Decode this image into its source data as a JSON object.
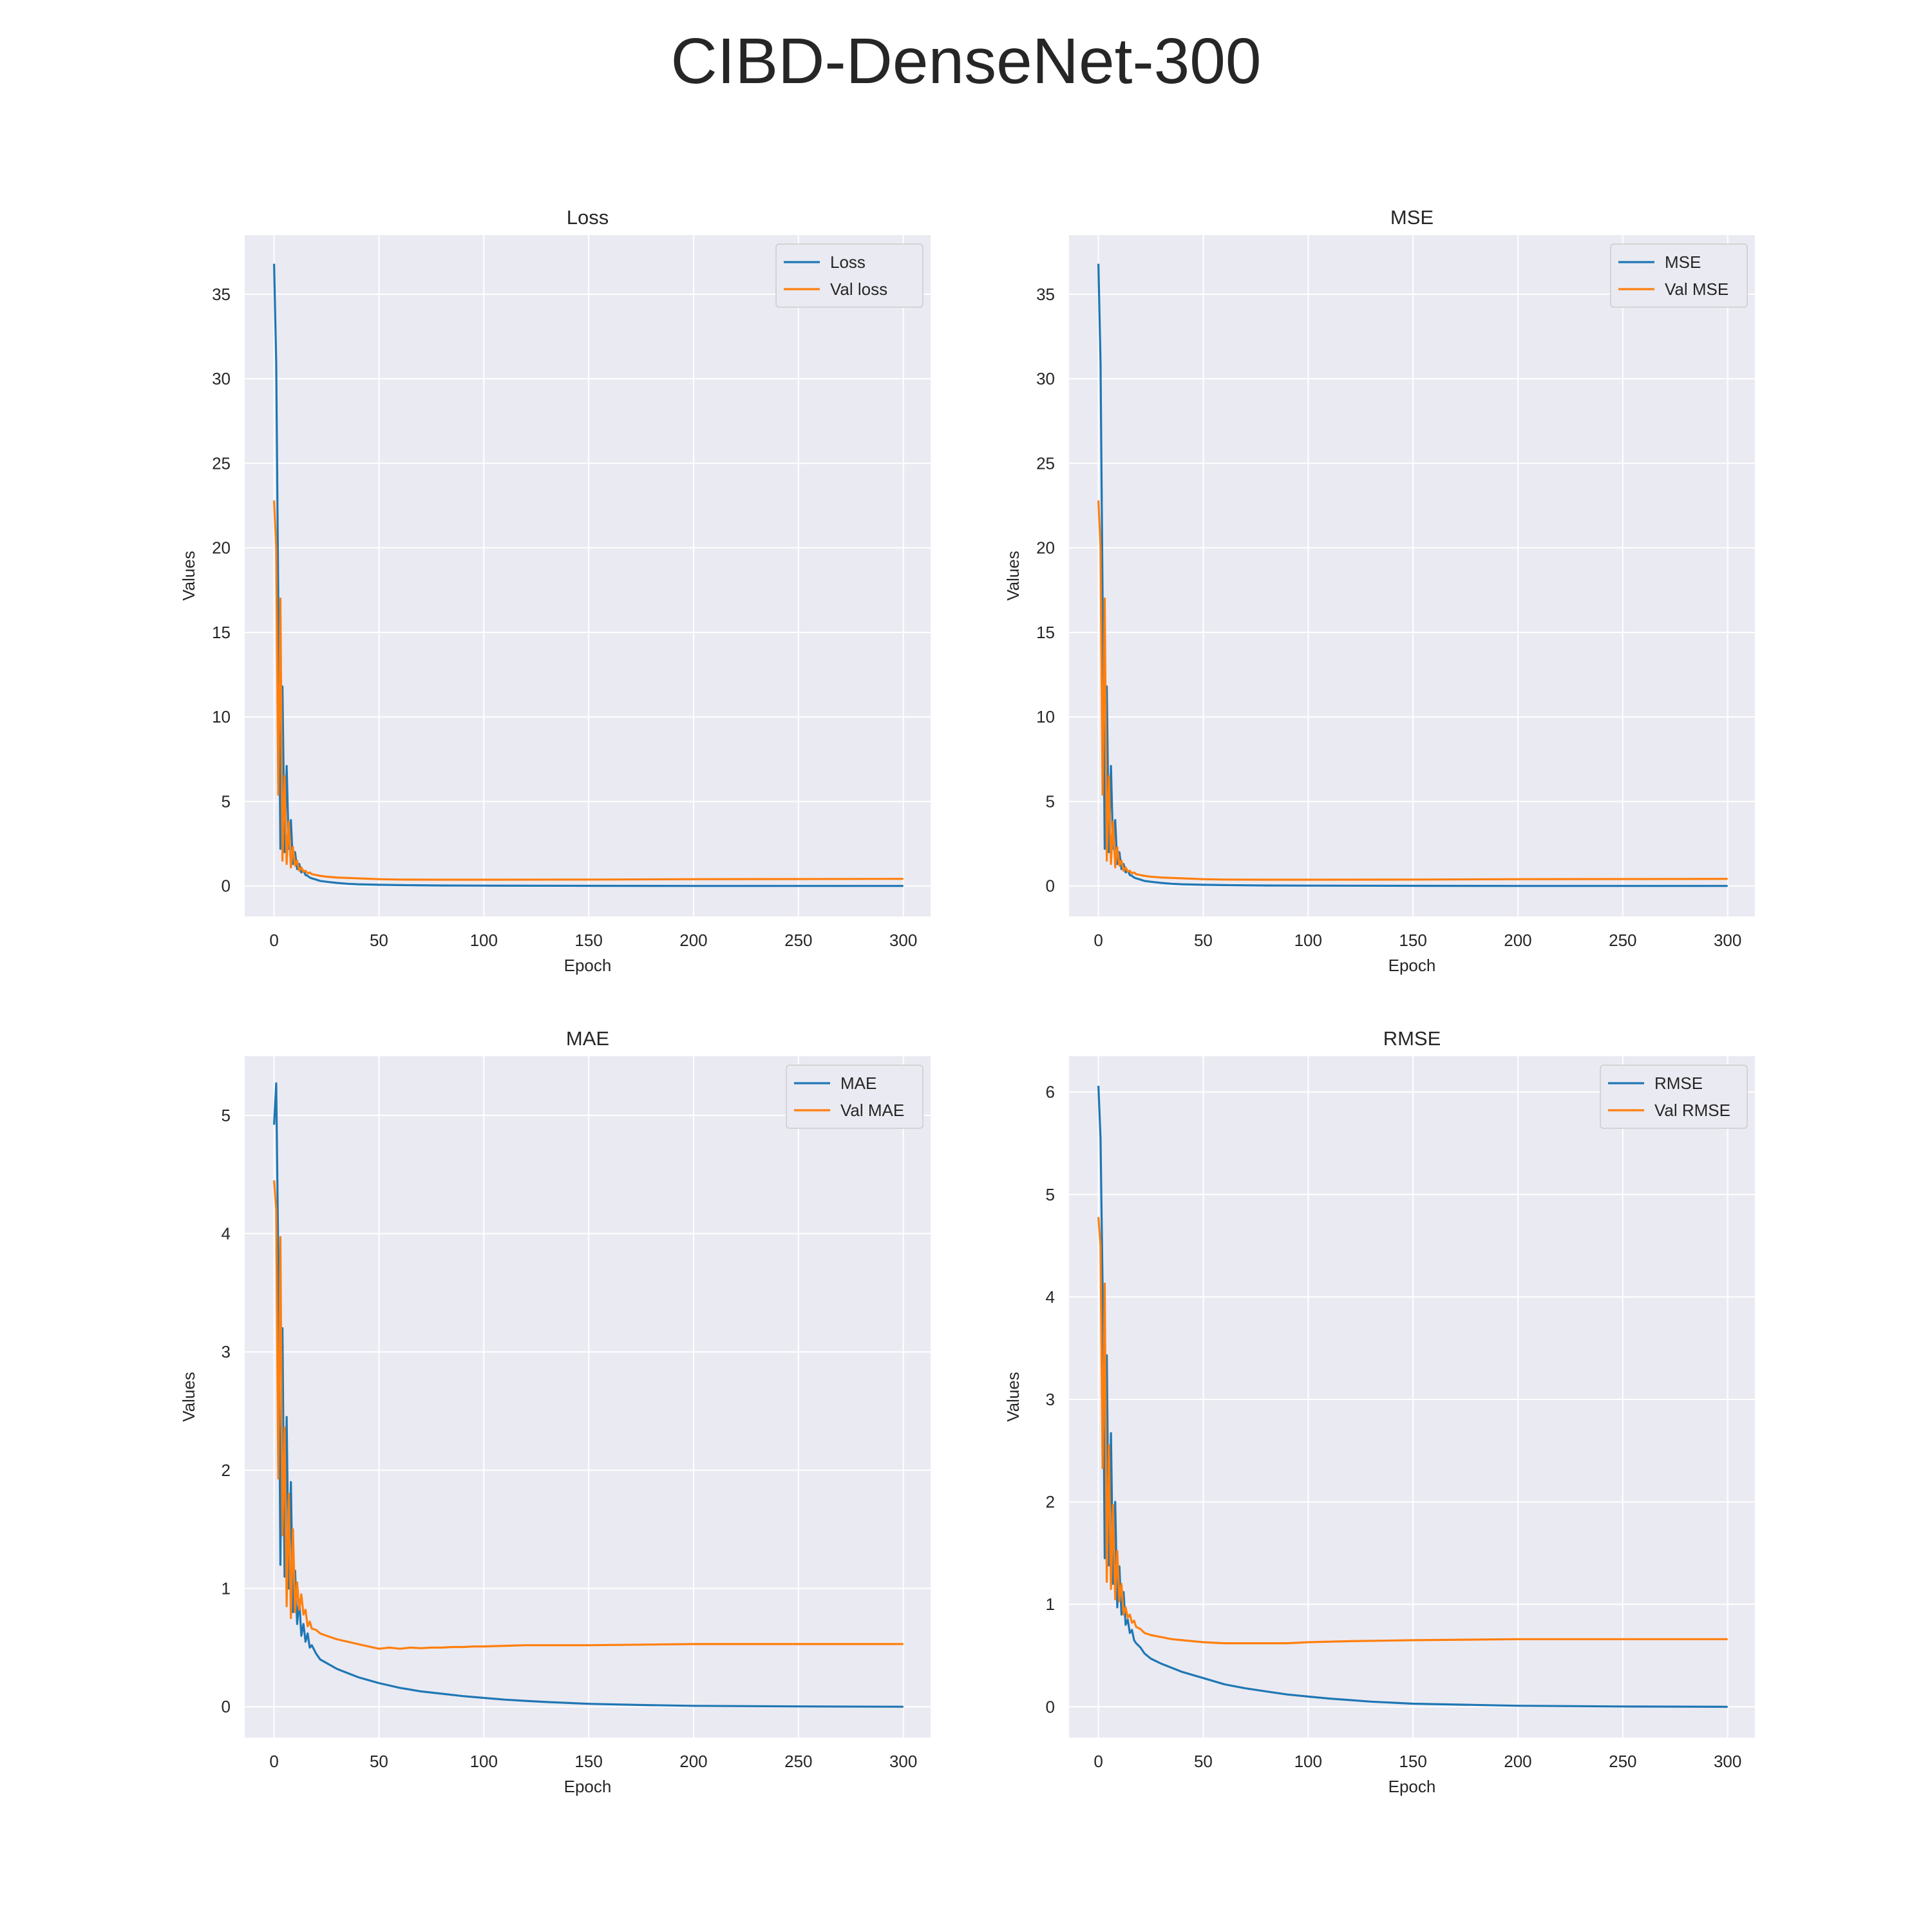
{
  "suptitle": "CIBD-DenseNet-300",
  "chart_data": [
    {
      "type": "line",
      "title": "Loss",
      "xlabel": "Epoch",
      "ylabel": "Values",
      "xlim": [
        -14,
        313
      ],
      "ylim": [
        -1.8,
        38.5
      ],
      "xticks": [
        0,
        50,
        100,
        150,
        200,
        250,
        300
      ],
      "yticks": [
        0,
        5,
        10,
        15,
        20,
        25,
        30,
        35
      ],
      "grid": true,
      "legend": "top-right",
      "series": [
        {
          "name": "Loss",
          "color": "#1f77b4",
          "x": [
            0,
            1,
            2,
            3,
            4,
            5,
            6,
            7,
            8,
            9,
            10,
            11,
            12,
            13,
            14,
            15,
            16,
            17,
            18,
            20,
            22,
            25,
            30,
            35,
            40,
            50,
            60,
            80,
            100,
            150,
            200,
            250,
            300
          ],
          "y": [
            36.8,
            31.0,
            17.0,
            2.2,
            11.8,
            2.0,
            7.1,
            2.2,
            3.9,
            1.3,
            2.0,
            1.0,
            1.3,
            0.8,
            0.9,
            0.65,
            0.6,
            0.5,
            0.45,
            0.38,
            0.3,
            0.25,
            0.18,
            0.13,
            0.1,
            0.07,
            0.05,
            0.03,
            0.02,
            0.01,
            0.0,
            0.0,
            0.0
          ]
        },
        {
          "name": "Val loss",
          "color": "#ff7f0e",
          "x": [
            0,
            1,
            2,
            3,
            4,
            5,
            6,
            7,
            8,
            9,
            10,
            11,
            12,
            13,
            14,
            15,
            16,
            17,
            18,
            20,
            22,
            25,
            30,
            40,
            50,
            60,
            80,
            100,
            150,
            200,
            250,
            300
          ],
          "y": [
            22.8,
            20.0,
            5.4,
            17.0,
            1.5,
            6.5,
            1.3,
            3.8,
            1.1,
            2.3,
            1.2,
            1.5,
            0.9,
            1.1,
            0.85,
            0.9,
            0.75,
            0.8,
            0.7,
            0.65,
            0.6,
            0.55,
            0.5,
            0.45,
            0.4,
            0.38,
            0.37,
            0.37,
            0.38,
            0.4,
            0.41,
            0.42
          ]
        }
      ]
    },
    {
      "type": "line",
      "title": "MSE",
      "xlabel": "Epoch",
      "ylabel": "Values",
      "xlim": [
        -14,
        313
      ],
      "ylim": [
        -1.8,
        38.5
      ],
      "xticks": [
        0,
        50,
        100,
        150,
        200,
        250,
        300
      ],
      "yticks": [
        0,
        5,
        10,
        15,
        20,
        25,
        30,
        35
      ],
      "grid": true,
      "legend": "top-right",
      "series": [
        {
          "name": "MSE",
          "color": "#1f77b4",
          "x": [
            0,
            1,
            2,
            3,
            4,
            5,
            6,
            7,
            8,
            9,
            10,
            11,
            12,
            13,
            14,
            15,
            16,
            17,
            18,
            20,
            22,
            25,
            30,
            35,
            40,
            50,
            60,
            80,
            100,
            150,
            200,
            250,
            300
          ],
          "y": [
            36.8,
            31.0,
            17.0,
            2.2,
            11.8,
            2.0,
            7.1,
            2.2,
            3.9,
            1.3,
            2.0,
            1.0,
            1.3,
            0.8,
            0.9,
            0.65,
            0.6,
            0.5,
            0.45,
            0.38,
            0.3,
            0.25,
            0.18,
            0.13,
            0.1,
            0.07,
            0.05,
            0.03,
            0.02,
            0.01,
            0.0,
            0.0,
            0.0
          ]
        },
        {
          "name": "Val MSE",
          "color": "#ff7f0e",
          "x": [
            0,
            1,
            2,
            3,
            4,
            5,
            6,
            7,
            8,
            9,
            10,
            11,
            12,
            13,
            14,
            15,
            16,
            17,
            18,
            20,
            22,
            25,
            30,
            40,
            50,
            60,
            80,
            100,
            150,
            200,
            250,
            300
          ],
          "y": [
            22.8,
            20.0,
            5.4,
            17.0,
            1.5,
            6.5,
            1.3,
            3.8,
            1.1,
            2.3,
            1.2,
            1.5,
            0.9,
            1.1,
            0.85,
            0.9,
            0.75,
            0.8,
            0.7,
            0.65,
            0.6,
            0.55,
            0.5,
            0.45,
            0.4,
            0.38,
            0.37,
            0.37,
            0.38,
            0.4,
            0.41,
            0.42
          ]
        }
      ]
    },
    {
      "type": "line",
      "title": "MAE",
      "xlabel": "Epoch",
      "ylabel": "Values",
      "xlim": [
        -14,
        313
      ],
      "ylim": [
        -0.26,
        5.5
      ],
      "xticks": [
        0,
        50,
        100,
        150,
        200,
        250,
        300
      ],
      "yticks": [
        0,
        1,
        2,
        3,
        4,
        5
      ],
      "grid": true,
      "legend": "top-right",
      "series": [
        {
          "name": "MAE",
          "color": "#1f77b4",
          "x": [
            0,
            1,
            2,
            3,
            4,
            5,
            6,
            7,
            8,
            9,
            10,
            11,
            12,
            13,
            14,
            15,
            16,
            17,
            18,
            20,
            22,
            25,
            30,
            40,
            50,
            60,
            70,
            80,
            90,
            100,
            110,
            120,
            130,
            150,
            175,
            200,
            250,
            300
          ],
          "y": [
            4.92,
            5.27,
            3.8,
            1.2,
            3.2,
            1.1,
            2.45,
            1.0,
            1.9,
            0.8,
            1.15,
            0.7,
            0.9,
            0.6,
            0.7,
            0.55,
            0.62,
            0.5,
            0.52,
            0.45,
            0.4,
            0.37,
            0.32,
            0.25,
            0.2,
            0.16,
            0.13,
            0.11,
            0.09,
            0.075,
            0.06,
            0.05,
            0.04,
            0.025,
            0.015,
            0.008,
            0.003,
            0.0
          ]
        },
        {
          "name": "Val MAE",
          "color": "#ff7f0e",
          "x": [
            0,
            1,
            2,
            3,
            4,
            5,
            6,
            7,
            8,
            9,
            10,
            11,
            12,
            13,
            14,
            15,
            16,
            17,
            18,
            20,
            22,
            25,
            30,
            35,
            40,
            45,
            50,
            55,
            60,
            65,
            70,
            75,
            80,
            85,
            90,
            95,
            100,
            110,
            120,
            150,
            200,
            250,
            300
          ],
          "y": [
            4.45,
            4.2,
            1.93,
            3.97,
            1.45,
            2.36,
            0.85,
            1.8,
            0.75,
            1.5,
            0.8,
            1.05,
            0.82,
            0.95,
            0.78,
            0.82,
            0.68,
            0.72,
            0.66,
            0.65,
            0.62,
            0.6,
            0.57,
            0.55,
            0.53,
            0.51,
            0.49,
            0.5,
            0.49,
            0.5,
            0.495,
            0.5,
            0.5,
            0.505,
            0.505,
            0.51,
            0.51,
            0.515,
            0.52,
            0.52,
            0.53,
            0.53,
            0.53
          ]
        }
      ]
    },
    {
      "type": "line",
      "title": "RMSE",
      "xlabel": "Epoch",
      "ylabel": "Values",
      "xlim": [
        -14,
        313
      ],
      "ylim": [
        -0.3,
        6.35
      ],
      "xticks": [
        0,
        50,
        100,
        150,
        200,
        250,
        300
      ],
      "yticks": [
        0,
        1,
        2,
        3,
        4,
        5,
        6
      ],
      "grid": true,
      "legend": "top-right",
      "series": [
        {
          "name": "RMSE",
          "color": "#1f77b4",
          "x": [
            0,
            1,
            2,
            3,
            4,
            5,
            6,
            7,
            8,
            9,
            10,
            11,
            12,
            13,
            14,
            15,
            16,
            17,
            18,
            20,
            22,
            25,
            30,
            40,
            50,
            60,
            70,
            80,
            90,
            100,
            110,
            120,
            130,
            150,
            175,
            200,
            250,
            300
          ],
          "y": [
            6.06,
            5.55,
            4.1,
            1.45,
            3.43,
            1.38,
            2.67,
            1.2,
            2.0,
            0.97,
            1.37,
            0.9,
            1.12,
            0.8,
            0.85,
            0.72,
            0.75,
            0.65,
            0.62,
            0.58,
            0.52,
            0.47,
            0.42,
            0.34,
            0.28,
            0.22,
            0.18,
            0.15,
            0.12,
            0.1,
            0.08,
            0.065,
            0.05,
            0.03,
            0.02,
            0.01,
            0.003,
            0.0
          ]
        },
        {
          "name": "Val RMSE",
          "color": "#ff7f0e",
          "x": [
            0,
            1,
            2,
            3,
            4,
            5,
            6,
            7,
            8,
            9,
            10,
            11,
            12,
            13,
            14,
            15,
            16,
            17,
            18,
            20,
            22,
            25,
            30,
            35,
            40,
            50,
            60,
            70,
            80,
            90,
            100,
            120,
            150,
            200,
            250,
            300
          ],
          "y": [
            4.78,
            4.5,
            2.33,
            4.13,
            1.22,
            2.55,
            1.15,
            1.97,
            1.05,
            1.52,
            1.03,
            1.2,
            0.9,
            0.97,
            0.87,
            0.9,
            0.82,
            0.84,
            0.78,
            0.76,
            0.72,
            0.7,
            0.68,
            0.66,
            0.65,
            0.63,
            0.62,
            0.62,
            0.62,
            0.62,
            0.63,
            0.64,
            0.65,
            0.66,
            0.66,
            0.66
          ]
        }
      ]
    }
  ]
}
